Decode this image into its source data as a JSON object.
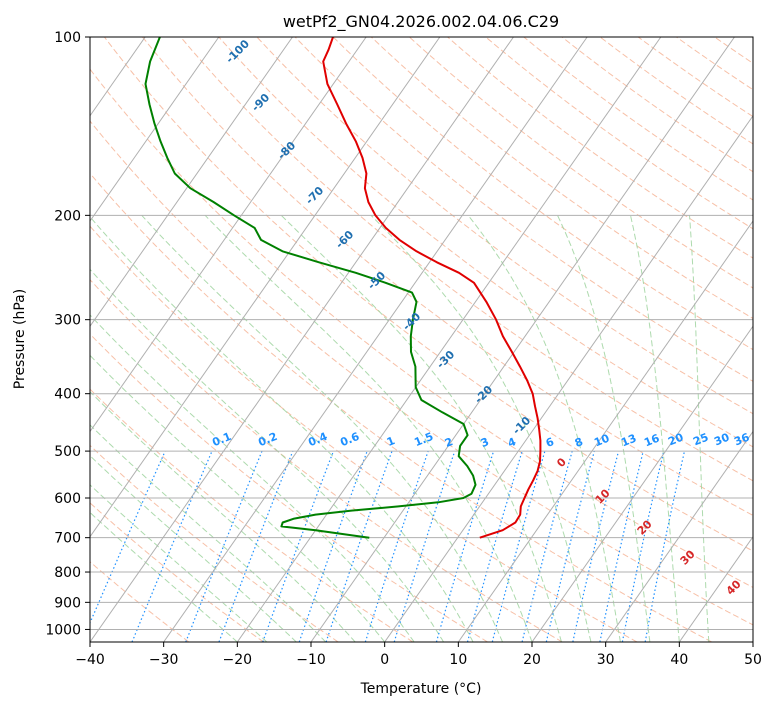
{
  "chart_data": {
    "type": "skew-t",
    "title": "wetPf2_GN04.2026.002.04.06.C29",
    "xlabel": "Temperature (°C)",
    "ylabel": "Pressure (hPa)",
    "xlim": [
      -40,
      50
    ],
    "ylim": [
      1050,
      100
    ],
    "y_scale": "log",
    "grid": true,
    "x_ticks": [
      -40,
      -30,
      -20,
      -10,
      0,
      10,
      20,
      30,
      40,
      50
    ],
    "y_ticks": [
      1000,
      900,
      800,
      700,
      600,
      500,
      400,
      300,
      200,
      100
    ],
    "colors": {
      "temperature": "#e00000",
      "dewpoint": "#008000",
      "isotherm": "#b0b0b0",
      "dry_adiabat": "#f4a582",
      "moist_adiabat": "#9fd39f",
      "mixing_ratio": "#1e90ff",
      "dry_adiabat_label": "#1f6fb0",
      "moist_adiabat_label": "#d62728",
      "hidden_label": "#808080"
    },
    "series": [
      {
        "role": "temperature",
        "points": [
          [
            700,
            3.0
          ],
          [
            680,
            5.4
          ],
          [
            660,
            6.4
          ],
          [
            640,
            6.3
          ],
          [
            620,
            5.6
          ],
          [
            600,
            5.3
          ],
          [
            580,
            5.0
          ],
          [
            560,
            4.8
          ],
          [
            540,
            4.5
          ],
          [
            520,
            3.9
          ],
          [
            500,
            3.0
          ],
          [
            480,
            2.0
          ],
          [
            460,
            0.8
          ],
          [
            440,
            -0.5
          ],
          [
            420,
            -2.0
          ],
          [
            400,
            -3.5
          ],
          [
            380,
            -5.5
          ],
          [
            360,
            -7.8
          ],
          [
            340,
            -10.3
          ],
          [
            320,
            -13.0
          ],
          [
            300,
            -15.5
          ],
          [
            280,
            -18.5
          ],
          [
            260,
            -22.0
          ],
          [
            250,
            -25.0
          ],
          [
            240,
            -29.0
          ],
          [
            230,
            -32.8
          ],
          [
            220,
            -36.2
          ],
          [
            210,
            -39.2
          ],
          [
            200,
            -41.8
          ],
          [
            190,
            -44.0
          ],
          [
            180,
            -45.8
          ],
          [
            170,
            -47.0
          ],
          [
            160,
            -49.0
          ],
          [
            150,
            -51.5
          ],
          [
            140,
            -54.5
          ],
          [
            130,
            -57.5
          ],
          [
            120,
            -60.8
          ],
          [
            110,
            -63.5
          ],
          [
            105,
            -63.9
          ],
          [
            100,
            -64.5
          ]
        ]
      },
      {
        "role": "dewpoint",
        "points": [
          [
            700,
            -12.0
          ],
          [
            690,
            -16.0
          ],
          [
            680,
            -20.0
          ],
          [
            670,
            -25.0
          ],
          [
            660,
            -25.2
          ],
          [
            650,
            -24.0
          ],
          [
            640,
            -21.5
          ],
          [
            630,
            -17.0
          ],
          [
            620,
            -11.0
          ],
          [
            610,
            -6.0
          ],
          [
            600,
            -3.0
          ],
          [
            590,
            -2.3
          ],
          [
            570,
            -2.6
          ],
          [
            550,
            -3.8
          ],
          [
            530,
            -5.5
          ],
          [
            510,
            -7.6
          ],
          [
            490,
            -8.4
          ],
          [
            470,
            -8.4
          ],
          [
            450,
            -10.0
          ],
          [
            430,
            -14.0
          ],
          [
            410,
            -18.0
          ],
          [
            390,
            -20.0
          ],
          [
            360,
            -22.0
          ],
          [
            340,
            -24.0
          ],
          [
            320,
            -25.5
          ],
          [
            300,
            -26.8
          ],
          [
            280,
            -28.0
          ],
          [
            270,
            -29.5
          ],
          [
            260,
            -34.0
          ],
          [
            250,
            -39.0
          ],
          [
            240,
            -45.0
          ],
          [
            230,
            -51.0
          ],
          [
            220,
            -55.0
          ],
          [
            210,
            -57.0
          ],
          [
            200,
            -61.0
          ],
          [
            190,
            -65.0
          ],
          [
            180,
            -69.5
          ],
          [
            170,
            -73.0
          ],
          [
            160,
            -75.5
          ],
          [
            150,
            -78.0
          ],
          [
            140,
            -80.5
          ],
          [
            130,
            -83.0
          ],
          [
            120,
            -85.5
          ],
          [
            110,
            -87.0
          ],
          [
            100,
            -88.0
          ]
        ]
      }
    ],
    "dry_adiabat_labels": [
      "-100",
      "-90",
      "-80",
      "-70",
      "-60",
      "-50",
      "-40",
      "-30",
      "-20",
      "-10"
    ],
    "moist_adiabat_labels": [
      "0",
      "10",
      "20",
      "30",
      "40"
    ],
    "mixing_ratio_labels": [
      "0.1",
      "0.2",
      "0.4",
      "0.6",
      "1",
      "1.5",
      "2",
      "3",
      "4",
      "6",
      "8",
      "10",
      "13",
      "16",
      "20",
      "25",
      "30",
      "36"
    ]
  }
}
